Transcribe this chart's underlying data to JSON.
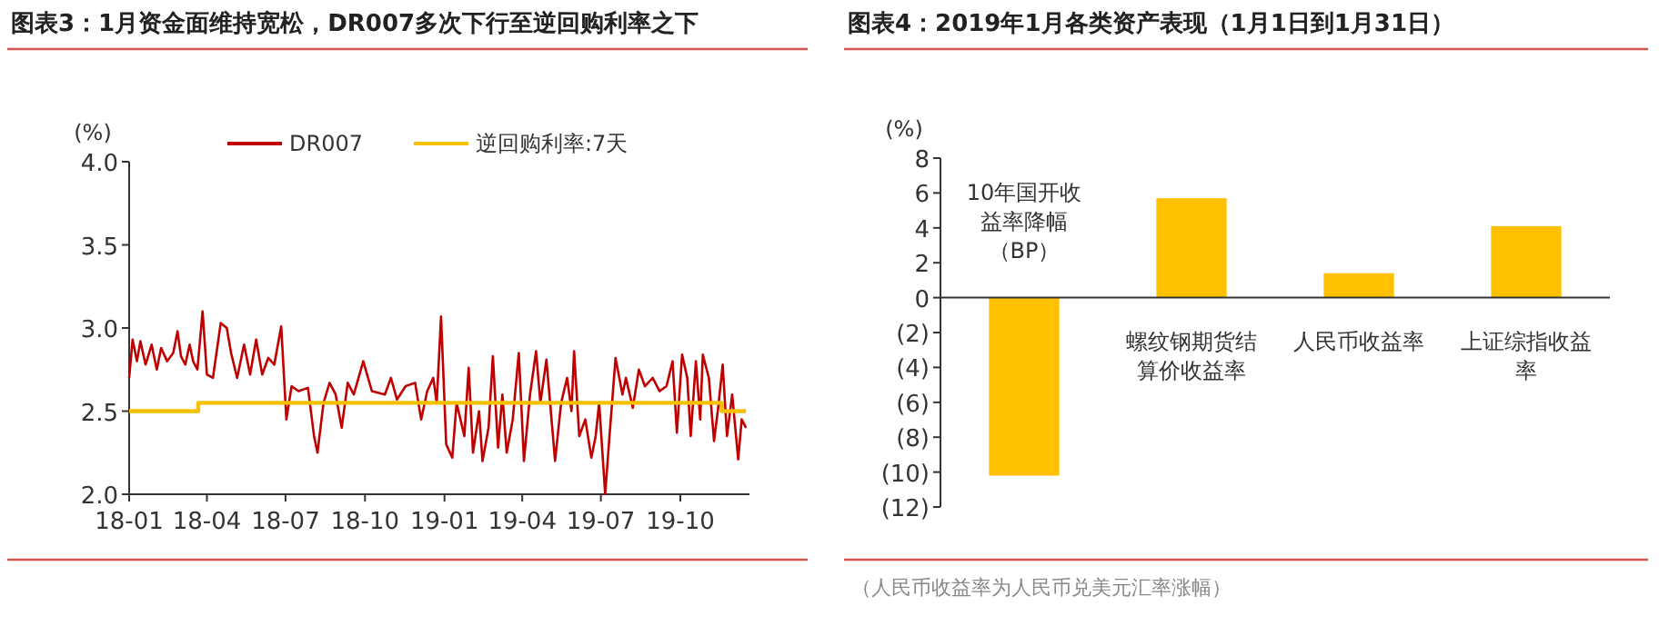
{
  "chart_data": [
    {
      "type": "line",
      "title": "图表3：1月资金面维持宽松，DR007多次下行至逆回购利率之下",
      "ylabel": "(%)",
      "legend": "top",
      "grid": false,
      "xlim": [
        "2018-01-01",
        "2019-12-20"
      ],
      "xticks": [
        {
          "value": "2018-01-01",
          "label": "18-01"
        },
        {
          "value": "2018-04-01",
          "label": "18-04"
        },
        {
          "value": "2018-07-01",
          "label": "18-07"
        },
        {
          "value": "2018-10-01",
          "label": "18-10"
        },
        {
          "value": "2019-01-01",
          "label": "19-01"
        },
        {
          "value": "2019-04-01",
          "label": "19-04"
        },
        {
          "value": "2019-07-01",
          "label": "19-07"
        },
        {
          "value": "2019-10-01",
          "label": "19-10"
        }
      ],
      "ylim": [
        2,
        4
      ],
      "yticks": [
        {
          "value": 2,
          "label": "2.0"
        },
        2.5,
        {
          "value": 3,
          "label": "3.0"
        },
        3.5,
        {
          "value": 4,
          "label": "4.0"
        }
      ],
      "series": [
        {
          "name": "DR007",
          "type": "line",
          "color": "#c00000",
          "x": [
            "2018-01-01",
            "2018-01-05",
            "2018-01-10",
            "2018-01-14",
            "2018-01-20",
            "2018-01-27",
            "2018-02-02",
            "2018-02-07",
            "2018-02-14",
            "2018-02-21",
            "2018-02-26",
            "2018-03-02",
            "2018-03-07",
            "2018-03-12",
            "2018-03-16",
            "2018-03-21",
            "2018-03-27",
            "2018-04-01",
            "2018-04-08",
            "2018-04-17",
            "2018-04-24",
            "2018-04-29",
            "2018-05-06",
            "2018-05-14",
            "2018-05-21",
            "2018-05-28",
            "2018-06-04",
            "2018-06-11",
            "2018-06-18",
            "2018-06-26",
            "2018-07-02",
            "2018-07-08",
            "2018-07-16",
            "2018-07-27",
            "2018-08-03",
            "2018-08-07",
            "2018-08-14",
            "2018-08-21",
            "2018-08-28",
            "2018-09-04",
            "2018-09-11",
            "2018-09-18",
            "2018-09-29",
            "2018-10-09",
            "2018-10-24",
            "2018-10-31",
            "2018-11-07",
            "2018-11-17",
            "2018-11-28",
            "2018-12-05",
            "2018-12-12",
            "2018-12-19",
            "2018-12-23",
            "2018-12-28",
            "2019-01-03",
            "2019-01-10",
            "2019-01-15",
            "2019-01-24",
            "2019-01-29",
            "2019-02-03",
            "2019-02-10",
            "2019-02-14",
            "2019-02-21",
            "2019-02-26",
            "2019-03-04",
            "2019-03-09",
            "2019-03-14",
            "2019-03-21",
            "2019-03-28",
            "2019-04-03",
            "2019-04-10",
            "2019-04-17",
            "2019-04-22",
            "2019-04-29",
            "2019-05-09",
            "2019-05-16",
            "2019-05-23",
            "2019-05-28",
            "2019-05-31",
            "2019-06-06",
            "2019-06-13",
            "2019-06-20",
            "2019-06-25",
            "2019-06-29",
            "2019-07-06",
            "2019-07-11",
            "2019-07-18",
            "2019-07-26",
            "2019-07-30",
            "2019-08-07",
            "2019-08-14",
            "2019-08-21",
            "2019-08-30",
            "2019-09-07",
            "2019-09-15",
            "2019-09-22",
            "2019-09-27",
            "2019-10-03",
            "2019-10-09",
            "2019-10-13",
            "2019-10-19",
            "2019-10-24",
            "2019-10-27",
            "2019-11-03",
            "2019-11-09",
            "2019-11-14",
            "2019-11-19",
            "2019-11-24",
            "2019-11-30",
            "2019-12-07",
            "2019-12-11",
            "2019-12-16"
          ],
          "values": [
            2.7,
            2.93,
            2.8,
            2.92,
            2.78,
            2.9,
            2.75,
            2.88,
            2.8,
            2.85,
            2.98,
            2.83,
            2.78,
            2.9,
            2.8,
            2.75,
            3.1,
            2.72,
            2.7,
            3.03,
            3.0,
            2.85,
            2.7,
            2.9,
            2.72,
            2.93,
            2.72,
            2.82,
            2.78,
            3.01,
            2.45,
            2.65,
            2.62,
            2.64,
            2.35,
            2.25,
            2.55,
            2.67,
            2.6,
            2.4,
            2.67,
            2.6,
            2.8,
            2.62,
            2.6,
            2.7,
            2.57,
            2.65,
            2.67,
            2.45,
            2.62,
            2.7,
            2.55,
            3.07,
            2.3,
            2.22,
            2.55,
            2.35,
            2.76,
            2.25,
            2.5,
            2.2,
            2.4,
            2.83,
            2.28,
            2.6,
            2.25,
            2.45,
            2.85,
            2.2,
            2.6,
            2.86,
            2.55,
            2.81,
            2.2,
            2.55,
            2.7,
            2.5,
            2.86,
            2.35,
            2.45,
            2.22,
            2.35,
            2.55,
            2.0,
            2.35,
            2.82,
            2.6,
            2.7,
            2.52,
            2.75,
            2.65,
            2.7,
            2.62,
            2.65,
            2.8,
            2.37,
            2.84,
            2.7,
            2.35,
            2.8,
            2.45,
            2.84,
            2.7,
            2.32,
            2.53,
            2.78,
            2.35,
            2.6,
            2.21,
            2.45,
            2.4
          ]
        },
        {
          "name": "逆回购利率:7天",
          "type": "step",
          "color": "#f5c000",
          "x": [
            "2018-01-01",
            "2018-03-22",
            "2019-11-18",
            "2019-12-16"
          ],
          "values": [
            2.5,
            2.55,
            2.5,
            2.5
          ]
        }
      ]
    },
    {
      "type": "bar",
      "title": "图表4：2019年1月各类资产表现（1月1日到1月31日）",
      "ylabel": "(%)",
      "grid": false,
      "categories": [
        "10年国开收益率降幅（BP）",
        "螺纹钢期货结算价收益率",
        "人民币收益率",
        "上证综指收益率"
      ],
      "values": [
        -10.2,
        5.7,
        1.4,
        4.1
      ],
      "color": "#ffc000",
      "ylim": [
        -12,
        8
      ],
      "yticks": [
        {
          "value": -12,
          "label": "(12)"
        },
        {
          "value": -10,
          "label": "(10)"
        },
        {
          "value": -8,
          "label": "(8)"
        },
        {
          "value": -6,
          "label": "(6)"
        },
        {
          "value": -4,
          "label": "(4)"
        },
        {
          "value": -2,
          "label": "(2)"
        },
        0,
        2,
        4,
        6,
        8
      ],
      "annotations": [
        "（人民币收益率为人民币兑美元汇率涨幅）"
      ]
    }
  ]
}
